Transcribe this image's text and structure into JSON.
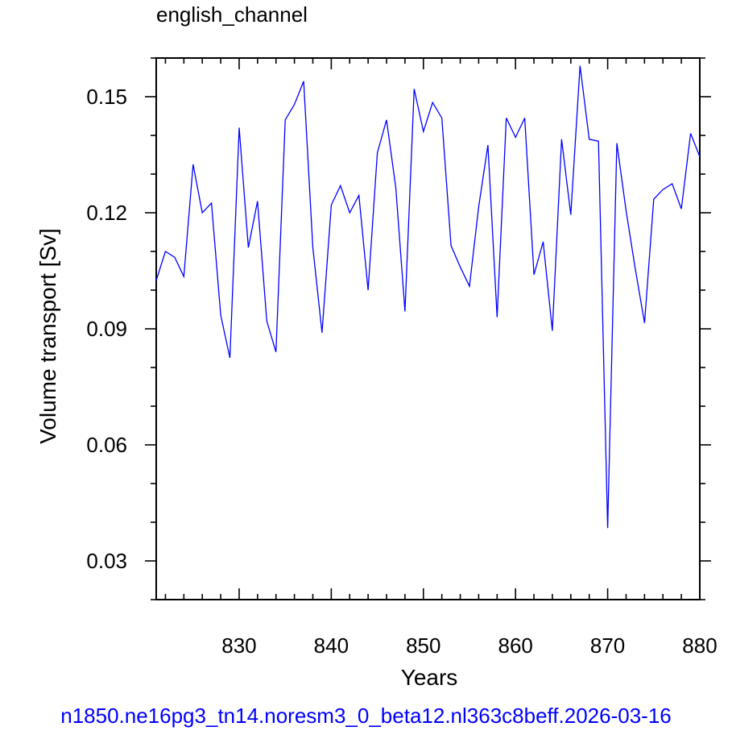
{
  "chart_data": {
    "type": "line",
    "title": "english_channel",
    "xlabel": "Years",
    "ylabel": "Volume transport [Sv]",
    "xlim": [
      821,
      880
    ],
    "ylim": [
      0.02,
      0.16
    ],
    "xticks": [
      830,
      840,
      850,
      860,
      870,
      880
    ],
    "yticks": [
      0.03,
      0.06,
      0.09,
      0.12,
      0.15
    ],
    "ytick_labels": [
      "0.03",
      "0.06",
      "0.09",
      "0.12",
      "0.15"
    ],
    "grid": false,
    "line_color": "#0000ff",
    "x": [
      821,
      822,
      823,
      824,
      825,
      826,
      827,
      828,
      829,
      830,
      831,
      832,
      833,
      834,
      835,
      836,
      837,
      838,
      839,
      840,
      841,
      842,
      843,
      844,
      845,
      846,
      847,
      848,
      849,
      850,
      851,
      852,
      853,
      854,
      855,
      856,
      857,
      858,
      859,
      860,
      861,
      862,
      863,
      864,
      865,
      866,
      867,
      868,
      869,
      870,
      871,
      872,
      873,
      874,
      875,
      876,
      877,
      878,
      879,
      880
    ],
    "values": [
      0.1025,
      0.11,
      0.1085,
      0.1035,
      0.1325,
      0.12,
      0.1225,
      0.0935,
      0.0825,
      0.142,
      0.111,
      0.123,
      0.092,
      0.084,
      0.144,
      0.148,
      0.154,
      0.111,
      0.089,
      0.122,
      0.127,
      0.12,
      0.1245,
      0.1,
      0.1355,
      0.144,
      0.1265,
      0.0945,
      0.152,
      0.141,
      0.1485,
      0.1445,
      0.1115,
      0.106,
      0.101,
      0.1215,
      0.1375,
      0.093,
      0.1445,
      0.1395,
      0.1445,
      0.104,
      0.1125,
      0.0895,
      0.139,
      0.1195,
      0.158,
      0.139,
      0.1385,
      0.0385,
      0.138,
      0.1205,
      0.1055,
      0.0915,
      0.1235,
      0.126,
      0.1275,
      0.121,
      0.1405,
      0.1345
    ]
  },
  "footer_text": "n1850.ne16pg3_tn14.noresm3_0_beta12.nl363c8beff.2026-03-16"
}
